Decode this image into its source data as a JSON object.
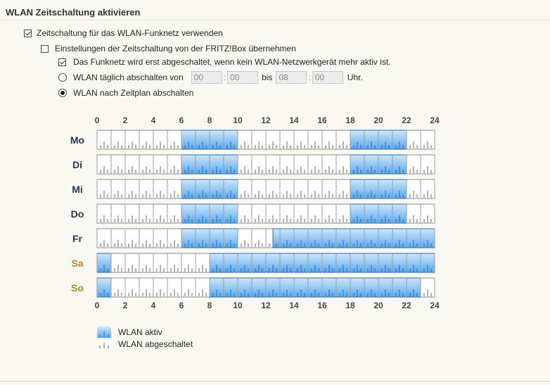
{
  "section_title": "WLAN Zeitschaltung aktivieren",
  "options": {
    "use_timer": {
      "label": "Zeitschaltung für das WLAN-Funknetz verwenden",
      "checked": true
    },
    "adopt_fritzbox": {
      "label": "Einstellungen der Zeitschaltung von der FRITZ!Box übernehmen",
      "checked": false
    },
    "wait_inactive": {
      "label": "Das Funknetz wird erst abgeschaltet, wenn kein WLAN-Netzwerkgerät mehr aktiv ist.",
      "checked": true
    },
    "daily_off": {
      "label": "WLAN täglich abschalten von",
      "selected": false,
      "from_hour": "00",
      "from_min": "00",
      "to_label": "bis",
      "to_hour": "08",
      "to_min": "00",
      "unit": "Uhr."
    },
    "by_schedule": {
      "label": "WLAN nach Zeitplan abschalten",
      "selected": true
    }
  },
  "legend": {
    "active": "WLAN aktiv",
    "off": "WLAN abgeschaltet"
  },
  "colors": {
    "active_top": "#cfe6fb",
    "active_bottom": "#5aaaf0",
    "active_border": "#2a6aa6",
    "weekday_label": "#1f3553",
    "weekend_label": "#b08a2a"
  },
  "chart_data": {
    "type": "heatmap",
    "x_ticks": [
      "0",
      "2",
      "4",
      "6",
      "8",
      "10",
      "12",
      "14",
      "16",
      "18",
      "20",
      "22",
      "24"
    ],
    "xlim": [
      0,
      24
    ],
    "days": [
      {
        "label": "Mo",
        "weekend": false,
        "active": [
          [
            6,
            10
          ],
          [
            18,
            22
          ]
        ]
      },
      {
        "label": "Di",
        "weekend": false,
        "active": [
          [
            6,
            10
          ],
          [
            18,
            22
          ]
        ]
      },
      {
        "label": "Mi",
        "weekend": false,
        "active": [
          [
            6,
            10
          ],
          [
            18,
            22
          ]
        ]
      },
      {
        "label": "Do",
        "weekend": false,
        "active": [
          [
            6,
            10
          ],
          [
            18,
            22
          ]
        ]
      },
      {
        "label": "Fr",
        "weekend": false,
        "active": [
          [
            6,
            10
          ],
          [
            12.5,
            24
          ]
        ]
      },
      {
        "label": "Sa",
        "weekend": true,
        "active": [
          [
            0,
            1
          ],
          [
            8,
            24
          ]
        ]
      },
      {
        "label": "So",
        "weekend": true,
        "active": [
          [
            0,
            1
          ],
          [
            8,
            23
          ]
        ]
      }
    ]
  }
}
